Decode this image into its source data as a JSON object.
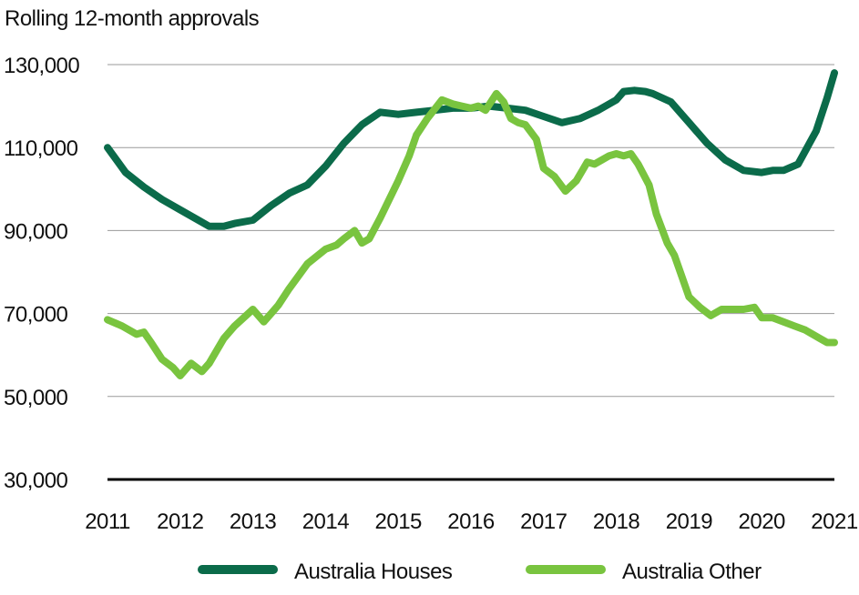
{
  "chart_data": {
    "type": "line",
    "ylabel": "Rolling 12-month approvals",
    "xlabel": "",
    "ylim": [
      30000,
      130000
    ],
    "xlim": [
      2011,
      2021
    ],
    "y_ticks": [
      {
        "value": 130000,
        "label": "130,000"
      },
      {
        "value": 110000,
        "label": "110,000"
      },
      {
        "value": 90000,
        "label": "90,000"
      },
      {
        "value": 70000,
        "label": "70,000"
      },
      {
        "value": 50000,
        "label": "50,000"
      },
      {
        "value": 30000,
        "label": "30,000"
      }
    ],
    "x_ticks": [
      {
        "value": 2011,
        "label": "2011"
      },
      {
        "value": 2012,
        "label": "2012"
      },
      {
        "value": 2013,
        "label": "2013"
      },
      {
        "value": 2014,
        "label": "2014"
      },
      {
        "value": 2015,
        "label": "2015"
      },
      {
        "value": 2016,
        "label": "2016"
      },
      {
        "value": 2017,
        "label": "2017"
      },
      {
        "value": 2018,
        "label": "2018"
      },
      {
        "value": 2019,
        "label": "2019"
      },
      {
        "value": 2020,
        "label": "2020"
      },
      {
        "value": 2021,
        "label": "2021"
      }
    ],
    "grid": true,
    "legend_position": "bottom",
    "series": [
      {
        "name": "Australia Houses",
        "color": "#0b6b4a",
        "x": [
          2011.0,
          2011.25,
          2011.5,
          2011.75,
          2012.0,
          2012.25,
          2012.4,
          2012.6,
          2012.75,
          2013.0,
          2013.25,
          2013.5,
          2013.75,
          2014.0,
          2014.25,
          2014.5,
          2014.75,
          2015.0,
          2015.25,
          2015.5,
          2015.75,
          2016.0,
          2016.25,
          2016.5,
          2016.75,
          2017.0,
          2017.25,
          2017.5,
          2017.75,
          2018.0,
          2018.1,
          2018.25,
          2018.4,
          2018.5,
          2018.75,
          2019.0,
          2019.25,
          2019.5,
          2019.75,
          2020.0,
          2020.15,
          2020.3,
          2020.5,
          2020.75,
          2020.9,
          2021.0
        ],
        "values": [
          110000,
          104000,
          100500,
          97500,
          95000,
          92500,
          91000,
          91000,
          91700,
          92500,
          96000,
          99000,
          101000,
          105500,
          111000,
          115500,
          118500,
          118000,
          118500,
          119000,
          119500,
          119500,
          120000,
          119500,
          119000,
          117500,
          116000,
          117000,
          119000,
          121500,
          123500,
          123800,
          123500,
          123000,
          121000,
          116000,
          111000,
          107000,
          104500,
          104000,
          104500,
          104500,
          106000,
          114000,
          122000,
          128000
        ]
      },
      {
        "name": "Australia Other",
        "color": "#79c43f",
        "x": [
          2011.0,
          2011.2,
          2011.4,
          2011.5,
          2011.6,
          2011.75,
          2011.9,
          2012.0,
          2012.15,
          2012.3,
          2012.4,
          2012.5,
          2012.6,
          2012.75,
          2013.0,
          2013.15,
          2013.25,
          2013.35,
          2013.5,
          2013.75,
          2014.0,
          2014.15,
          2014.25,
          2014.4,
          2014.5,
          2014.6,
          2014.75,
          2015.0,
          2015.15,
          2015.25,
          2015.4,
          2015.6,
          2015.75,
          2016.0,
          2016.1,
          2016.2,
          2016.35,
          2016.45,
          2016.55,
          2016.65,
          2016.75,
          2016.9,
          2017.0,
          2017.15,
          2017.3,
          2017.45,
          2017.6,
          2017.7,
          2017.8,
          2017.9,
          2018.0,
          2018.1,
          2018.2,
          2018.3,
          2018.45,
          2018.55,
          2018.7,
          2018.8,
          2018.9,
          2019.0,
          2019.15,
          2019.3,
          2019.45,
          2019.6,
          2019.75,
          2019.9,
          2020.0,
          2020.15,
          2020.3,
          2020.45,
          2020.6,
          2020.8,
          2020.9,
          2021.0
        ],
        "values": [
          68500,
          67000,
          65000,
          65500,
          63000,
          59000,
          57000,
          55000,
          58000,
          56000,
          58000,
          61000,
          64000,
          67000,
          71000,
          68000,
          70000,
          72000,
          76000,
          82000,
          85500,
          86500,
          88000,
          90000,
          87000,
          88000,
          93000,
          102000,
          108000,
          113000,
          117000,
          121500,
          120500,
          119500,
          120000,
          119000,
          123000,
          121000,
          117000,
          116000,
          115500,
          112000,
          105000,
          103000,
          99500,
          102000,
          106500,
          106000,
          107000,
          108000,
          108500,
          108000,
          108500,
          106000,
          101000,
          94000,
          87000,
          84000,
          79000,
          74000,
          71500,
          69500,
          71000,
          71000,
          71000,
          71500,
          69000,
          69000,
          68000,
          67000,
          66000,
          64000,
          63000,
          63000
        ]
      }
    ]
  }
}
